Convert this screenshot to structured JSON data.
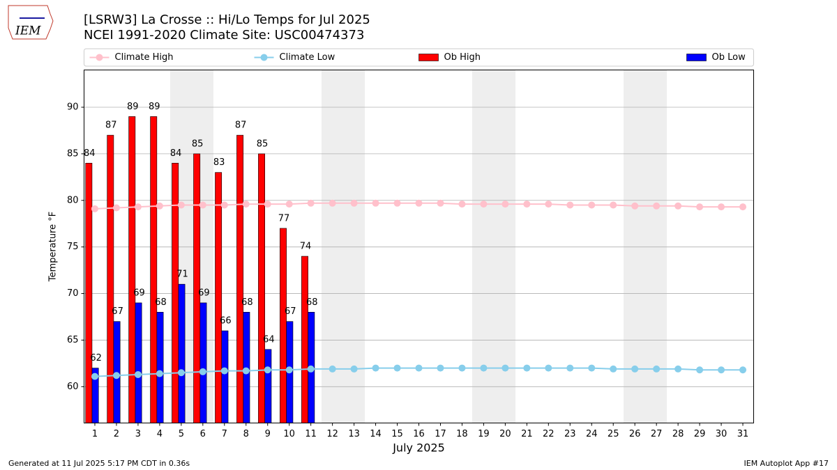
{
  "logo_text": "IEM",
  "footer_left": "Generated at 11 Jul 2025 5:17 PM CDT in 0.36s",
  "footer_right": "IEM Autoplot App #17",
  "chart_data": {
    "type": "bar",
    "title": "[LSRW3] La Crosse :: Hi/Lo Temps for Jul 2025",
    "subtitle": "NCEI 1991-2020 Climate Site: USC00474373",
    "x_label": "July 2025",
    "y_label": "Temperature °F",
    "x": [
      1,
      2,
      3,
      4,
      5,
      6,
      7,
      8,
      9,
      10,
      11,
      12,
      13,
      14,
      15,
      16,
      17,
      18,
      19,
      20,
      21,
      22,
      23,
      24,
      25,
      26,
      27,
      28,
      29,
      30,
      31
    ],
    "xlim": [
      0.5,
      31.5
    ],
    "xticks": [
      1,
      2,
      3,
      4,
      5,
      6,
      7,
      8,
      9,
      10,
      11,
      12,
      13,
      14,
      15,
      16,
      17,
      18,
      19,
      20,
      21,
      22,
      23,
      24,
      25,
      26,
      27,
      28,
      29,
      30,
      31
    ],
    "ylim": [
      56.1,
      94
    ],
    "yticks": [
      60,
      65,
      70,
      75,
      80,
      85,
      90
    ],
    "grid": true,
    "legend": "top",
    "series": [
      {
        "name": "Climate High",
        "type": "line",
        "color": "#ffc0cb",
        "values": [
          79.1,
          79.2,
          79.3,
          79.4,
          79.5,
          79.5,
          79.5,
          79.6,
          79.6,
          79.6,
          79.7,
          79.7,
          79.7,
          79.7,
          79.7,
          79.7,
          79.7,
          79.6,
          79.6,
          79.6,
          79.6,
          79.6,
          79.5,
          79.5,
          79.5,
          79.4,
          79.4,
          79.4,
          79.3,
          79.3,
          79.3
        ]
      },
      {
        "name": "Climate Low",
        "type": "line",
        "color": "#87ceeb",
        "values": [
          61.1,
          61.2,
          61.3,
          61.4,
          61.5,
          61.6,
          61.7,
          61.7,
          61.8,
          61.8,
          61.9,
          61.9,
          61.9,
          62.0,
          62.0,
          62.0,
          62.0,
          62.0,
          62.0,
          62.0,
          62.0,
          62.0,
          62.0,
          62.0,
          61.9,
          61.9,
          61.9,
          61.9,
          61.8,
          61.8,
          61.8
        ]
      },
      {
        "name": "Ob High",
        "type": "bar",
        "color": "#ff0000",
        "values": [
          84,
          87,
          89,
          89,
          84,
          85,
          83,
          87,
          85,
          77,
          74,
          null,
          null,
          null,
          null,
          null,
          null,
          null,
          null,
          null,
          null,
          null,
          null,
          null,
          null,
          null,
          null,
          null,
          null,
          null,
          null
        ]
      },
      {
        "name": "Ob Low",
        "type": "bar",
        "color": "#0000ff",
        "values": [
          62,
          67,
          69,
          68,
          71,
          69,
          66,
          68,
          64,
          67,
          68,
          null,
          null,
          null,
          null,
          null,
          null,
          null,
          null,
          null,
          null,
          null,
          null,
          null,
          null,
          null,
          null,
          null,
          null,
          null,
          null
        ]
      }
    ]
  }
}
